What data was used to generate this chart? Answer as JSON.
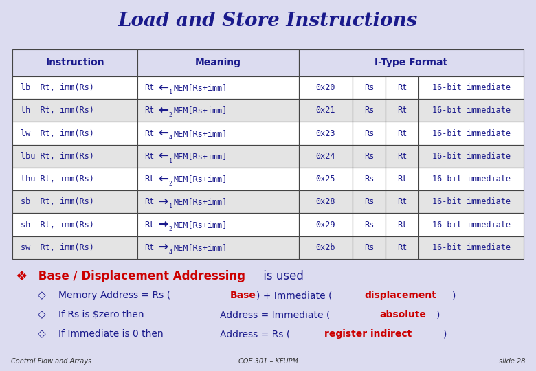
{
  "title": "Load and Store Instructions",
  "title_color": "#1a1a8c",
  "title_bg": "#c8c8e8",
  "body_bg": "#dcdcf0",
  "footer_bg": "#f0f0c0",
  "footer_left": "Control Flow and Arrays",
  "footer_center": "COE 301 – KFUPM",
  "footer_right": "slide 28",
  "header_row": [
    "Instruction",
    "Meaning",
    "I-Type Format"
  ],
  "rows": [
    {
      "instr": "lb  Rt, imm(Rs)",
      "arrow": "←",
      "sub": "1",
      "op": "0x20",
      "rs": "Rs",
      "rt": "Rt",
      "imm": "16-bit immediate",
      "arrow_right": false
    },
    {
      "instr": "lh  Rt, imm(Rs)",
      "arrow": "←",
      "sub": "2",
      "op": "0x21",
      "rs": "Rs",
      "rt": "Rt",
      "imm": "16-bit immediate",
      "arrow_right": false
    },
    {
      "instr": "lw  Rt, imm(Rs)",
      "arrow": "←",
      "sub": "4",
      "op": "0x23",
      "rs": "Rs",
      "rt": "Rt",
      "imm": "16-bit immediate",
      "arrow_right": false
    },
    {
      "instr": "lbu Rt, imm(Rs)",
      "arrow": "←",
      "sub": "1",
      "op": "0x24",
      "rs": "Rs",
      "rt": "Rt",
      "imm": "16-bit immediate",
      "arrow_right": false
    },
    {
      "instr": "lhu Rt, imm(Rs)",
      "arrow": "←",
      "sub": "2",
      "op": "0x25",
      "rs": "Rs",
      "rt": "Rt",
      "imm": "16-bit immediate",
      "arrow_right": false
    },
    {
      "instr": "sb  Rt, imm(Rs)",
      "arrow": "→",
      "sub": "1",
      "op": "0x28",
      "rs": "Rs",
      "rt": "Rt",
      "imm": "16-bit immediate",
      "arrow_right": true
    },
    {
      "instr": "sh  Rt, imm(Rs)",
      "arrow": "→",
      "sub": "2",
      "op": "0x29",
      "rs": "Rs",
      "rt": "Rt",
      "imm": "16-bit immediate",
      "arrow_right": true
    },
    {
      "instr": "sw  Rt, imm(Rs)",
      "arrow": "→",
      "sub": "4",
      "op": "0x2b",
      "rs": "Rs",
      "rt": "Rt",
      "imm": "16-bit immediate",
      "arrow_right": true
    }
  ],
  "table_header_bg": "#dcdcf0",
  "table_row_colors": [
    "#ffffff",
    "#e4e4e4"
  ],
  "text_color": "#1a1a8c",
  "border_color": "#444444",
  "red_color": "#cc0000"
}
